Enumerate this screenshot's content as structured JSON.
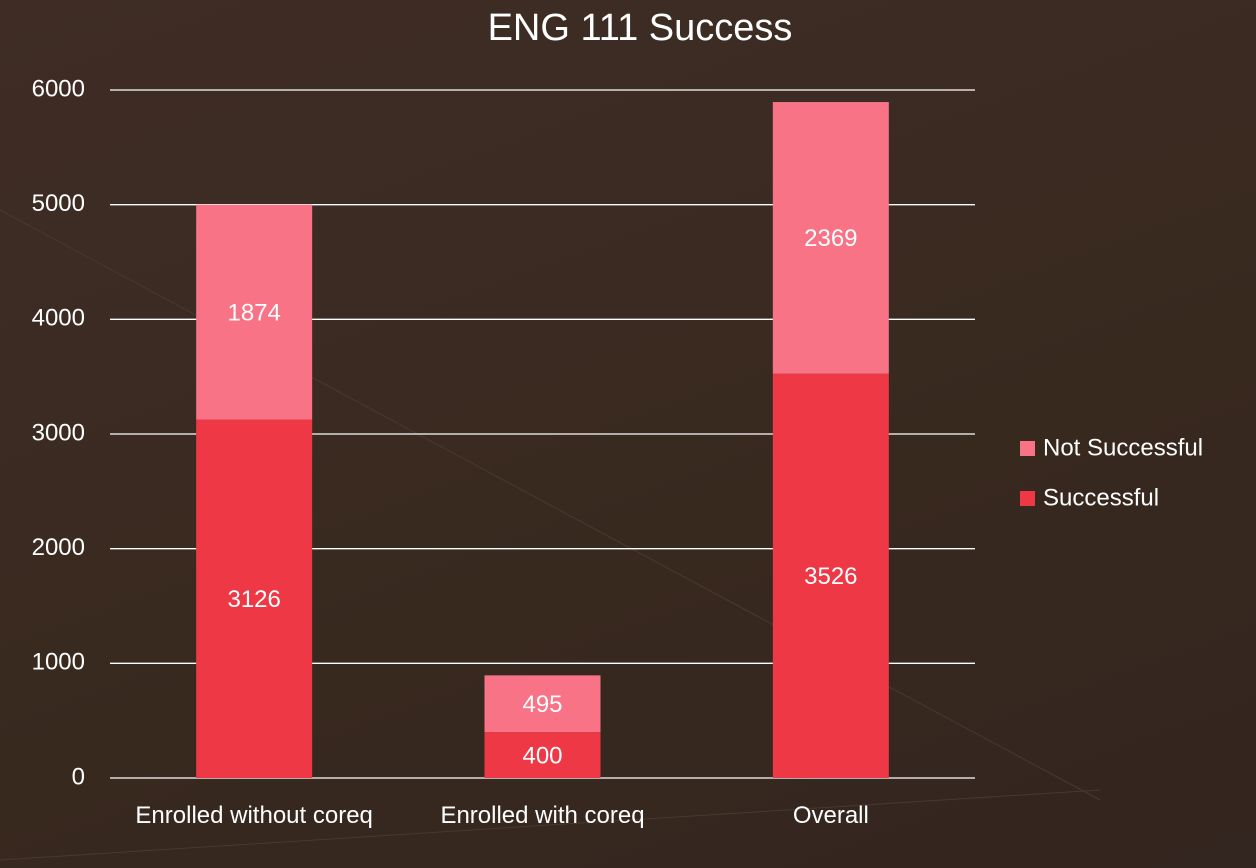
{
  "chart_data": {
    "type": "stacked-bar",
    "title": "ENG 111 Success",
    "categories": [
      "Enrolled without coreq",
      "Enrolled with coreq",
      "Overall"
    ],
    "series": [
      {
        "name": "Successful",
        "color": "#ee3846",
        "values": [
          3126,
          400,
          3526
        ]
      },
      {
        "name": "Not Successful",
        "color": "#f87386",
        "values": [
          1874,
          495,
          2369
        ]
      }
    ],
    "ylim": [
      0,
      6000
    ],
    "yticks": [
      0,
      1000,
      2000,
      3000,
      4000,
      5000,
      6000
    ],
    "grid": true,
    "legend": "right"
  }
}
